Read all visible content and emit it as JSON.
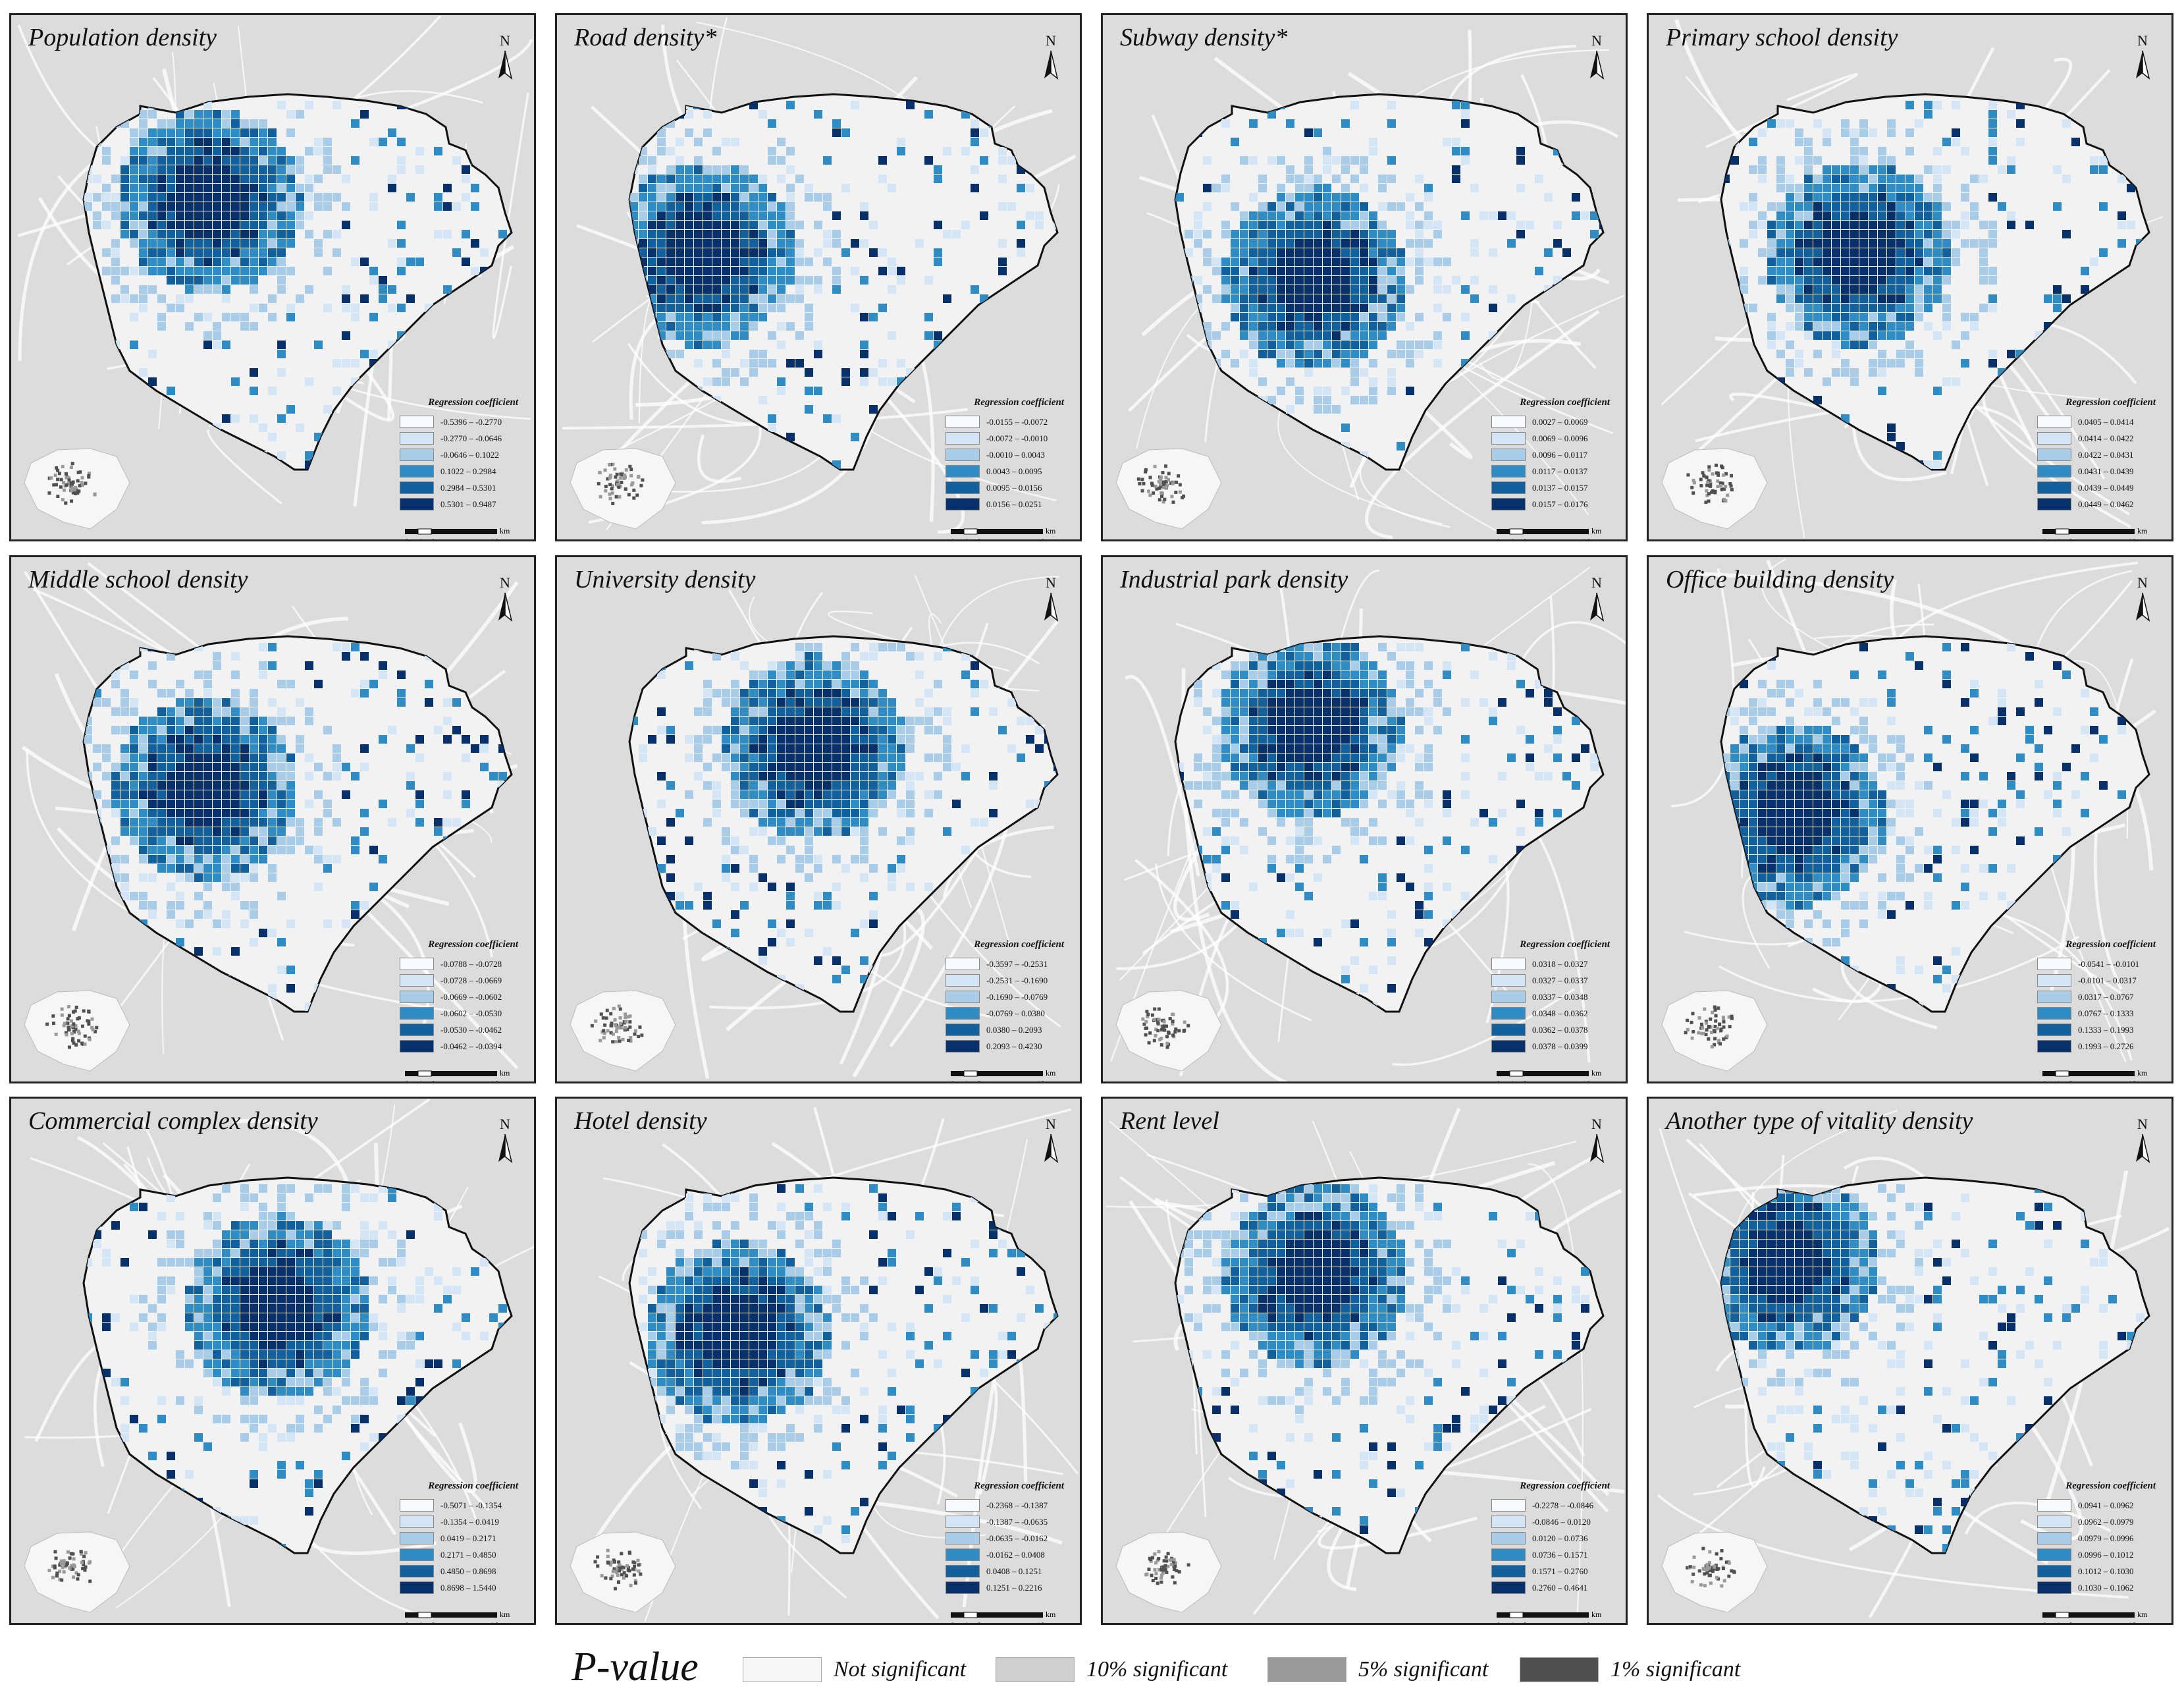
{
  "panels": [
    {
      "title": "Population density",
      "legend_title": "Regression coefficient",
      "classes": [
        "-0.5396 – -0.2770",
        "-0.2770 – -0.0646",
        "-0.0646 – 0.1022",
        "0.1022 – 0.2984",
        "0.2984 – 0.5301",
        "0.5301 – 0.9487"
      ],
      "north": "N",
      "scale_labels": [
        "0",
        "4",
        "8",
        "16"
      ],
      "scale_unit": "km"
    },
    {
      "title": "Road density*",
      "legend_title": "Regression coefficient",
      "classes": [
        "-0.0155 – -0.0072",
        "-0.0072 – -0.0010",
        "-0.0010 – 0.0043",
        "0.0043 – 0.0095",
        "0.0095 – 0.0156",
        "0.0156 – 0.0251"
      ],
      "north": "N",
      "scale_labels": [
        "0",
        "4",
        "8",
        "16"
      ],
      "scale_unit": "km"
    },
    {
      "title": "Subway density*",
      "legend_title": "Regression coefficient",
      "classes": [
        "0.0027 – 0.0069",
        "0.0069 – 0.0096",
        "0.0096 – 0.0117",
        "0.0117 – 0.0137",
        "0.0137 – 0.0157",
        "0.0157 – 0.0176"
      ],
      "north": "N",
      "scale_labels": [
        "0",
        "4",
        "8",
        "16"
      ],
      "scale_unit": "km"
    },
    {
      "title": "Primary school density",
      "legend_title": "Regression coefficient",
      "classes": [
        "0.0405 – 0.0414",
        "0.0414 – 0.0422",
        "0.0422 – 0.0431",
        "0.0431 – 0.0439",
        "0.0439 – 0.0449",
        "0.0449 – 0.0462"
      ],
      "north": "N",
      "scale_labels": [
        "0",
        "4",
        "8",
        "16"
      ],
      "scale_unit": "km"
    },
    {
      "title": "Middle school density",
      "legend_title": "Regression coefficient",
      "classes": [
        "-0.0788 – -0.0728",
        "-0.0728 – -0.0669",
        "-0.0669 – -0.0602",
        "-0.0602 – -0.0530",
        "-0.0530 – -0.0462",
        "-0.0462 – -0.0394"
      ],
      "north": "N",
      "scale_labels": [
        "0",
        "4",
        "8",
        "16"
      ],
      "scale_unit": "km"
    },
    {
      "title": "University density",
      "legend_title": "Regression coefficient",
      "classes": [
        "-0.3597 – -0.2531",
        "-0.2531 – -0.1690",
        "-0.1690 – -0.0769",
        "-0.0769 – 0.0380",
        "0.0380 – 0.2093",
        "0.2093 – 0.4230"
      ],
      "north": "N",
      "scale_labels": [
        "0",
        "4",
        "8",
        "16"
      ],
      "scale_unit": "km"
    },
    {
      "title": "Industrial park density",
      "legend_title": "Regression coefficient",
      "classes": [
        "0.0318 – 0.0327",
        "0.0327 – 0.0337",
        "0.0337 – 0.0348",
        "0.0348 – 0.0362",
        "0.0362 – 0.0378",
        "0.0378 – 0.0399"
      ],
      "north": "N",
      "scale_labels": [
        "0",
        "4",
        "8",
        "16"
      ],
      "scale_unit": "km"
    },
    {
      "title": "Office building density",
      "legend_title": "Regression coefficient",
      "classes": [
        "-0.0541 – -0.0101",
        "-0.0101 – 0.0317",
        "0.0317 – 0.0767",
        "0.0767 – 0.1333",
        "0.1333 – 0.1993",
        "0.1993 – 0.2726"
      ],
      "north": "N",
      "scale_labels": [
        "0",
        "4",
        "8",
        "16"
      ],
      "scale_unit": "km"
    },
    {
      "title": "Commercial complex density",
      "legend_title": "Regression coefficient",
      "classes": [
        "-0.5071 – -0.1354",
        "-0.1354 – 0.0419",
        "0.0419 – 0.2171",
        "0.2171 – 0.4850",
        "0.4850 – 0.8698",
        "0.8698 – 1.5440"
      ],
      "north": "N",
      "scale_labels": [
        "0",
        "4",
        "8",
        "16"
      ],
      "scale_unit": "km"
    },
    {
      "title": "Hotel density",
      "legend_title": "Regression coefficient",
      "classes": [
        "-0.2368 – -0.1387",
        "-0.1387 – -0.0635",
        "-0.0635 – -0.0162",
        "-0.0162 – 0.0408",
        "0.0408 – 0.1251",
        "0.1251 – 0.2216"
      ],
      "north": "N",
      "scale_labels": [
        "0",
        "4",
        "8",
        "16"
      ],
      "scale_unit": "km"
    },
    {
      "title": "Rent level",
      "legend_title": "Regression coefficient",
      "classes": [
        "-0.2278 – -0.0846",
        "-0.0846 – 0.0120",
        "0.0120 – 0.0736",
        "0.0736 – 0.1571",
        "0.1571 – 0.2760",
        "0.2760 – 0.4641"
      ],
      "north": "N",
      "scale_labels": [
        "0",
        "4",
        "8",
        "16"
      ],
      "scale_unit": "km"
    },
    {
      "title": "Another type of vitality density",
      "legend_title": "Regression coefficient",
      "classes": [
        "0.0941 – 0.0962",
        "0.0962 – 0.0979",
        "0.0979 – 0.0996",
        "0.0996 – 0.1012",
        "0.1012 – 0.1030",
        "0.1030 – 0.1062"
      ],
      "north": "N",
      "scale_labels": [
        "0",
        "4",
        "8",
        "16"
      ],
      "scale_unit": "km"
    }
  ],
  "class_colors": [
    "#f7fbff",
    "#d4e6f5",
    "#a9cde8",
    "#2f8cc5",
    "#13609f",
    "#08306b"
  ],
  "pvalue": {
    "title": "P-value",
    "items": [
      {
        "label": "Not  significant",
        "color": "#f6f6f6"
      },
      {
        "label": "10% significant",
        "color": "#cfcfcf"
      },
      {
        "label": "5% significant",
        "color": "#9a9a9a"
      },
      {
        "label": "1% significant",
        "color": "#505050"
      }
    ]
  },
  "map_colors": {
    "background": "#dcdcdc",
    "boundary_fill": "#f2f2f2",
    "boundary_stroke": "#111111",
    "road": "#ffffff"
  }
}
